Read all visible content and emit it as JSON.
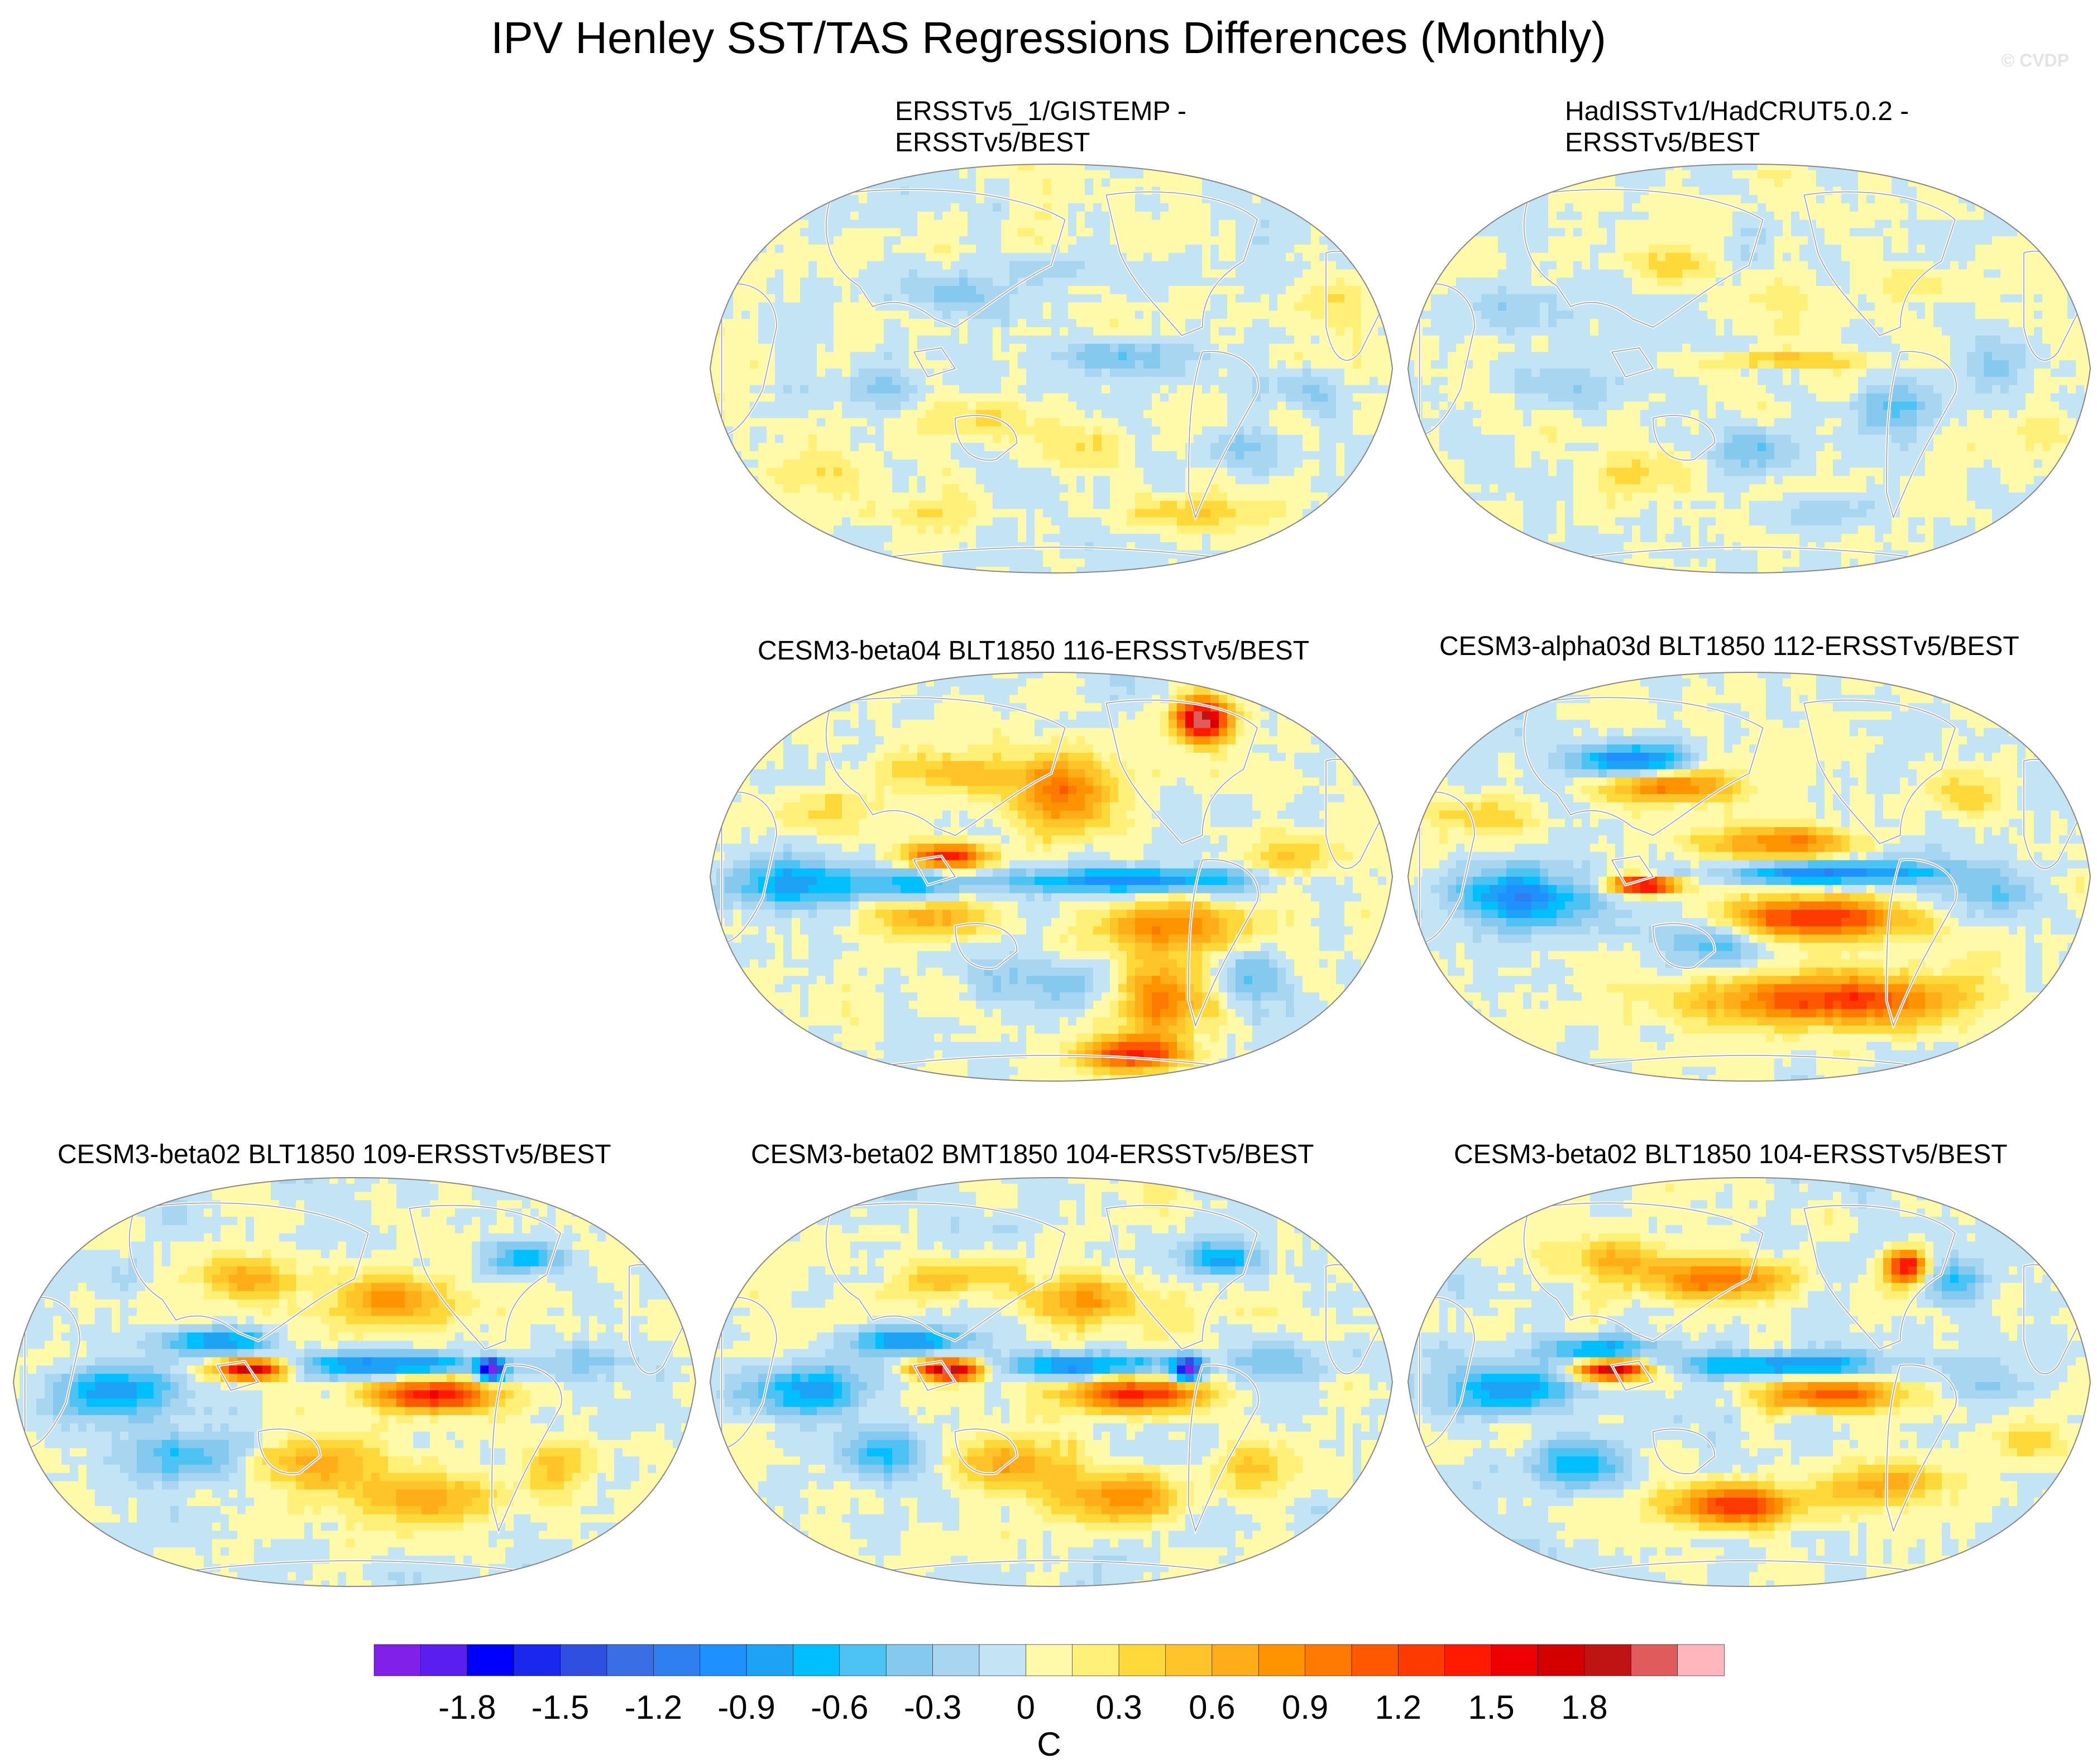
{
  "chart_data": [
    {
      "type": "heatmap",
      "title": "IPV Henley SST/TAS Regressions Differences (Monthly)",
      "watermark": "© CVDP",
      "panels": [
        {
          "id": "p1",
          "title_lines": [
            "ERSSTv5_1/GISTEMP -",
            "ERSSTv5/BEST"
          ],
          "style": "obs-a"
        },
        {
          "id": "p2",
          "title_lines": [
            "HadISSTv1/HadCRUT5.0.2 -",
            "ERSSTv5/BEST"
          ],
          "style": "obs-b"
        },
        {
          "id": "p3",
          "title_lines": [
            "CESM3-beta04 BLT1850 116-ERSSTv5/BEST"
          ],
          "style": "model-a"
        },
        {
          "id": "p4",
          "title_lines": [
            "CESM3-alpha03d BLT1850 112-ERSSTv5/BEST"
          ],
          "style": "model-b"
        },
        {
          "id": "p5",
          "title_lines": [
            "CESM3-beta02 BLT1850 109-ERSSTv5/BEST"
          ],
          "style": "model-c"
        },
        {
          "id": "p6",
          "title_lines": [
            "CESM3-beta02 BMT1850 104-ERSSTv5/BEST"
          ],
          "style": "model-c"
        },
        {
          "id": "p7",
          "title_lines": [
            "CESM3-beta02 BLT1850 104-ERSSTv5/BEST"
          ],
          "style": "model-d"
        }
      ],
      "colorbar": {
        "units": "C",
        "tick_labels": [
          "-1.8",
          "-1.5",
          "-1.2",
          "-0.9",
          "-0.6",
          "-0.3",
          "0",
          "0.3",
          "0.6",
          "0.9",
          "1.2",
          "1.5",
          "1.8"
        ],
        "range": [
          -2.1,
          2.1
        ],
        "interval": 0.15,
        "colors": [
          "#8120e8",
          "#5a1ef0",
          "#0000ff",
          "#1a28ee",
          "#2e4fe0",
          "#3a6ee6",
          "#2f7ff0",
          "#1e90ff",
          "#1ea2f5",
          "#00bfff",
          "#4cc3f2",
          "#86c9ee",
          "#a8d6f0",
          "#c2e4f4",
          "#fffaaa",
          "#fff07a",
          "#ffd83a",
          "#ffc42a",
          "#ffae1a",
          "#ff9400",
          "#ff7a00",
          "#ff5800",
          "#ff3a00",
          "#ff1a00",
          "#ee0000",
          "#d40000",
          "#c01414",
          "#e05c5c",
          "#ffb6bc"
        ]
      }
    }
  ]
}
